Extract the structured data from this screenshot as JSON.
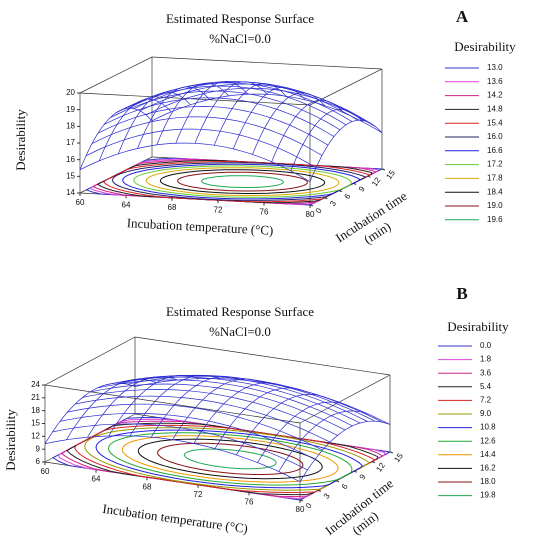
{
  "chart_data": [
    {
      "type": "surface",
      "panel": "A",
      "title": "Estimated Response Surface",
      "subtitle": "%NaCl=0.0",
      "xlabel": "Incubation temperature (°C)",
      "ylabel": [
        "Incubation time",
        "(min)"
      ],
      "zlabel": "Desirability",
      "xlim": [
        60,
        80
      ],
      "xticks": [
        60,
        64,
        68,
        72,
        76,
        80
      ],
      "ylim": [
        0,
        15
      ],
      "yticks": [
        0,
        3,
        6,
        9,
        12,
        15
      ],
      "zlim": [
        14,
        20
      ],
      "zticks": [
        14,
        15,
        16,
        17,
        18,
        19,
        20
      ],
      "legend": {
        "title": "Desirability",
        "levels": [
          {
            "value": 13,
            "label": "13.0"
          },
          13.6,
          14.2,
          14.8,
          15.4,
          {
            "value": 16,
            "label": "16.0"
          },
          16.6,
          17.2,
          17.8,
          18.4,
          {
            "value": 19,
            "label": "19.0"
          },
          19.6
        ],
        "colors": [
          "#3333cc",
          "#dd44dd",
          "#cc2288",
          "#222222",
          "#dd2222",
          "#222266",
          "#2222dd",
          "#66cc33",
          "#ddaa00",
          "#111111",
          "#881111",
          "#22aa55"
        ]
      },
      "surface_color": "#2a2ad0"
    },
    {
      "type": "surface",
      "panel": "B",
      "title": "Estimated Response Surface",
      "subtitle": "%NaCl=0.0",
      "xlabel": "Incubation temperature (°C)",
      "ylabel": [
        "Incubation time",
        "(min)"
      ],
      "zlabel": "Desirability",
      "xlim": [
        60,
        80
      ],
      "xticks": [
        60,
        64,
        68,
        72,
        76,
        80
      ],
      "ylim": [
        0,
        15
      ],
      "yticks": [
        0,
        3,
        6,
        9,
        12,
        15
      ],
      "zlim": [
        6,
        24
      ],
      "zticks": [
        6,
        9,
        12,
        15,
        18,
        21,
        24
      ],
      "legend": {
        "title": "Desirability",
        "levels": [
          {
            "value": 0,
            "label": "0.0"
          },
          1.8,
          3.6,
          5.4,
          7.2,
          {
            "value": 9,
            "label": "9.0"
          },
          10.8,
          12.6,
          14.4,
          16.2,
          {
            "value": 18,
            "label": "18.0"
          },
          19.8
        ],
        "colors": [
          "#3333cc",
          "#dd44dd",
          "#cc2288",
          "#222222",
          "#dd2222",
          "#999900",
          "#2222dd",
          "#22aa33",
          "#ee9900",
          "#111111",
          "#881111",
          "#22aa55"
        ]
      },
      "surface_color": "#2a2ad0"
    }
  ]
}
